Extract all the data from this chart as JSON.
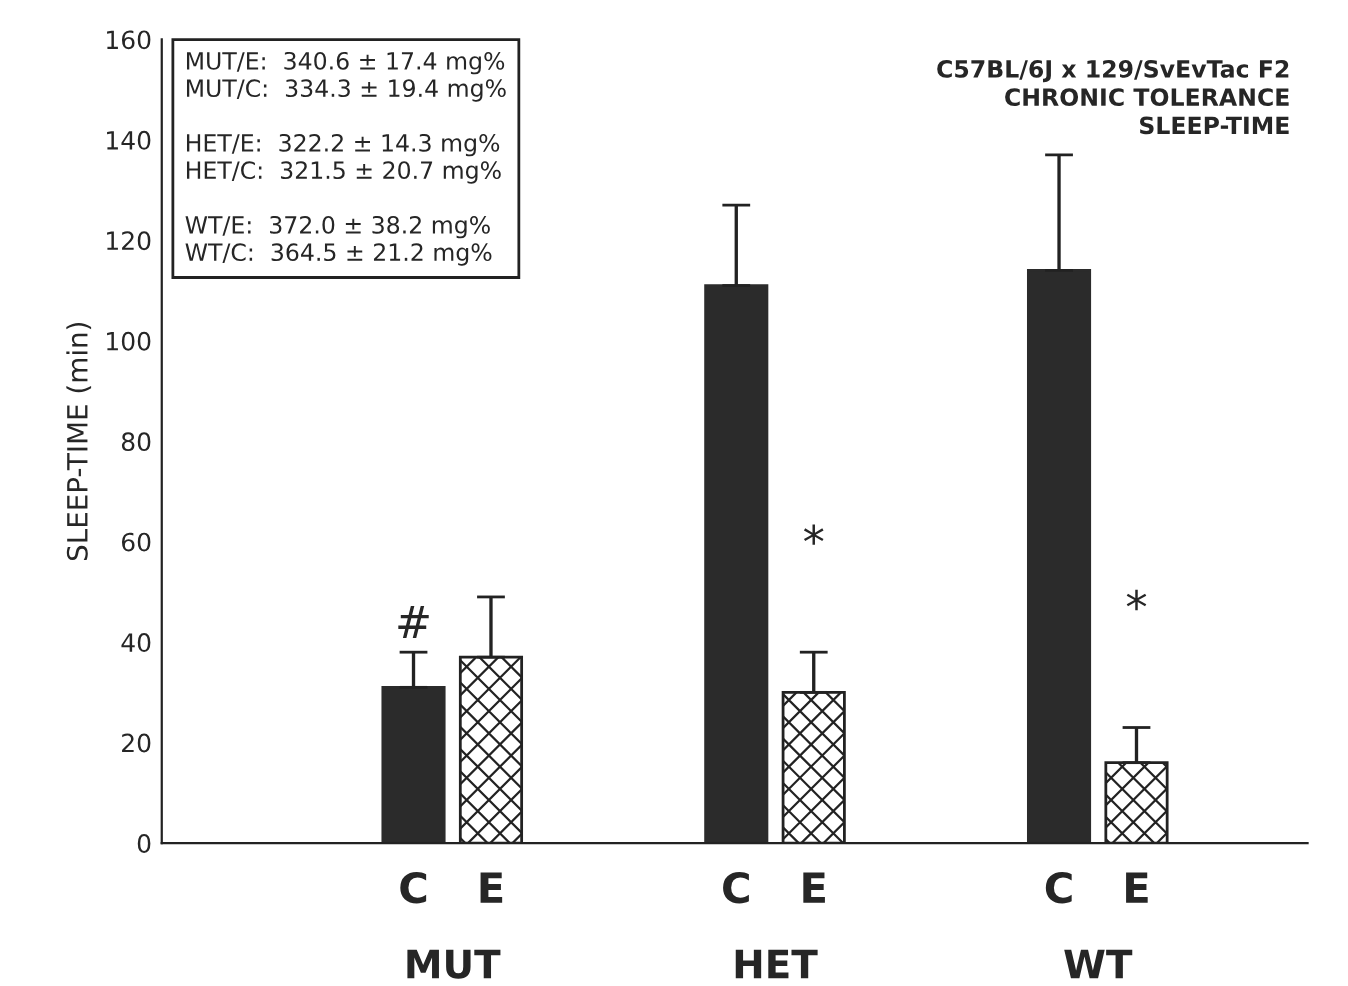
{
  "chart_data": {
    "type": "bar",
    "ylabel": "SLEEP-TIME (min)",
    "categories": [
      "MUT",
      "HET",
      "WT"
    ],
    "series": [
      {
        "name": "C",
        "color": "#2b2b2b",
        "values": [
          31,
          111,
          114
        ],
        "errors": [
          7,
          16,
          23
        ]
      },
      {
        "name": "E",
        "color": "#222222",
        "values": [
          37,
          30,
          16
        ],
        "errors": [
          12,
          8,
          7
        ]
      }
    ],
    "ylim": [
      0,
      160
    ],
    "yticks": [
      0,
      20,
      40,
      60,
      80,
      100,
      120,
      140,
      160
    ],
    "grid": false,
    "legend": false,
    "title": "C57BL/6J x 129/SvEvTac F2\nCHRONIC TOLERANCE\nSLEEP-TIME",
    "annotations": [
      "#",
      "*",
      "*",
      "MUT/E:  340.6 ± 17.4 mg%\nMUT/C:  334.3 ± 19.4 mg%\n\nHET/E:  322.2 ± 14.3 mg%\nHET/C:  321.5 ± 20.7 mg%\n\nWT/E:  372.0 ± 38.2 mg%\nWT/C:  364.5 ± 21.2 mg%"
    ]
  }
}
